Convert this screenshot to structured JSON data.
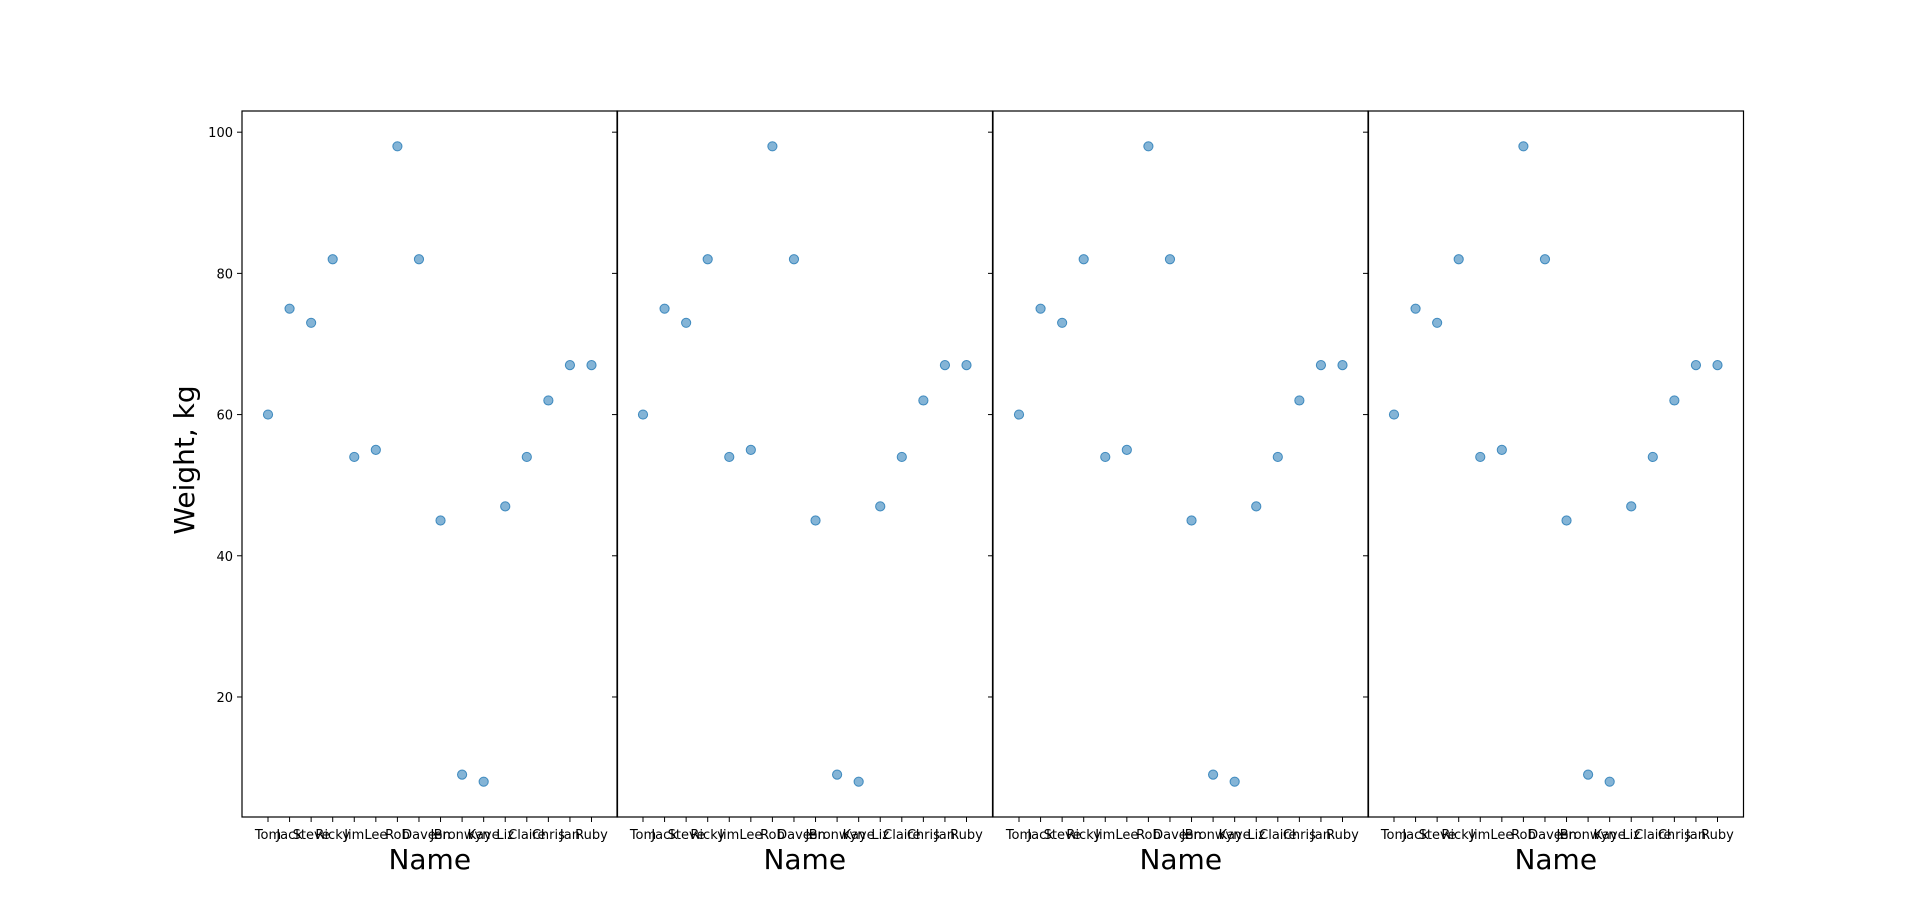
{
  "chart_data": {
    "type": "scatter",
    "layout": "4 side-by-side panels sharing y-axis",
    "ylabel": "Weight, kg",
    "ylim": [
      3,
      103
    ],
    "yticks": [
      20,
      40,
      60,
      80,
      100
    ],
    "grid": false,
    "marker_color": "#1f77b4",
    "panels": [
      {
        "xlabel": "Name",
        "categories": [
          "Tom",
          "Jack",
          "Steve",
          "Ricky",
          "Jim",
          "Lee",
          "Rob",
          "Dave",
          "Jen",
          "Bronwyn",
          "Kaye",
          "Liz",
          "Claire",
          "Chris",
          "Jan",
          "Ruby"
        ],
        "values": [
          60,
          75,
          73,
          82,
          54,
          55,
          98,
          82,
          45,
          9,
          8,
          47,
          54,
          62,
          67,
          67
        ]
      },
      {
        "xlabel": "Name",
        "categories": [
          "Tom",
          "Jack",
          "Steve",
          "Ricky",
          "Jim",
          "Lee",
          "Rob",
          "Dave",
          "Jen",
          "Bronwyn",
          "Kaye",
          "Liz",
          "Claire",
          "Chris",
          "Jan",
          "Ruby"
        ],
        "values": [
          60,
          75,
          73,
          82,
          54,
          55,
          98,
          82,
          45,
          9,
          8,
          47,
          54,
          62,
          67,
          67
        ]
      },
      {
        "xlabel": "Name",
        "categories": [
          "Tom",
          "Jack",
          "Steve",
          "Ricky",
          "Jim",
          "Lee",
          "Rob",
          "Dave",
          "Jen",
          "Bronwyn",
          "Kaye",
          "Liz",
          "Claire",
          "Chris",
          "Jan",
          "Ruby"
        ],
        "values": [
          60,
          75,
          73,
          82,
          54,
          55,
          98,
          82,
          45,
          9,
          8,
          47,
          54,
          62,
          67,
          67
        ]
      },
      {
        "xlabel": "Name",
        "categories": [
          "Tom",
          "Jack",
          "Steve",
          "Ricky",
          "Jim",
          "Lee",
          "Rob",
          "Dave",
          "Jen",
          "Bronwyn",
          "Kaye",
          "Liz",
          "Claire",
          "Chris",
          "Jan",
          "Ruby"
        ],
        "values": [
          60,
          75,
          73,
          82,
          54,
          55,
          98,
          82,
          45,
          9,
          8,
          47,
          54,
          62,
          67,
          67
        ]
      }
    ]
  }
}
